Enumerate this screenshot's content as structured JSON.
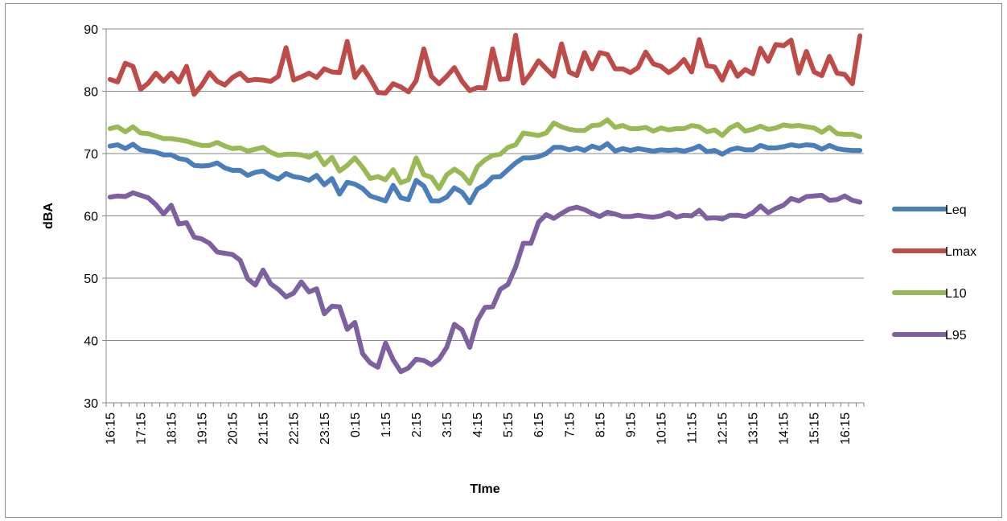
{
  "chart_data": {
    "type": "line",
    "title": "",
    "xlabel": "TIme",
    "ylabel": "dBA",
    "ylim": [
      30,
      90
    ],
    "yticks": [
      30,
      40,
      50,
      60,
      70,
      80,
      90
    ],
    "x_tick_labels": [
      "16:15",
      "17:15",
      "18:15",
      "19:15",
      "20:15",
      "21:15",
      "22:15",
      "23:15",
      "0:15",
      "1:15",
      "2:15",
      "3:15",
      "4:15",
      "5:15",
      "6:15",
      "7:15",
      "8:15",
      "9:15",
      "10:15",
      "11:15",
      "12:15",
      "13:15",
      "14:15",
      "15:15",
      "16:15"
    ],
    "x_points_per_tick": 4,
    "grid": "horizontal",
    "legend_position": "right",
    "series": [
      {
        "name": "Leq",
        "color": "#4a7ebb",
        "values": [
          71.2,
          71.4,
          70.8,
          71.5,
          70.6,
          70.4,
          70.2,
          69.8,
          69.8,
          69.2,
          69.0,
          68.1,
          68.0,
          68.1,
          68.5,
          67.7,
          67.3,
          67.3,
          66.5,
          67.0,
          67.2,
          66.4,
          65.9,
          66.8,
          66.3,
          66.1,
          65.7,
          66.5,
          65.0,
          66.0,
          63.5,
          65.4,
          65.1,
          64.4,
          63.2,
          62.8,
          62.4,
          64.9,
          62.9,
          62.6,
          65.7,
          64.8,
          62.4,
          62.4,
          63.0,
          64.5,
          63.8,
          62.1,
          64.3,
          65.0,
          66.2,
          66.3,
          67.4,
          68.5,
          69.3,
          69.3,
          69.5,
          70.0,
          71.0,
          71.0,
          70.6,
          70.9,
          70.5,
          71.2,
          70.8,
          71.6,
          70.4,
          70.8,
          70.5,
          70.8,
          70.6,
          70.4,
          70.6,
          70.5,
          70.6,
          70.4,
          70.7,
          71.2,
          70.3,
          70.5,
          69.9,
          70.6,
          70.9,
          70.6,
          70.6,
          71.3,
          70.9,
          70.9,
          71.1,
          71.4,
          71.2,
          71.4,
          71.3,
          70.7,
          71.3,
          70.8,
          70.6,
          70.5,
          70.5
        ]
      },
      {
        "name": "Lmax",
        "color": "#be4b48",
        "values": [
          81.9,
          81.5,
          84.5,
          84.0,
          80.3,
          81.3,
          82.9,
          81.6,
          82.9,
          81.5,
          84.0,
          79.5,
          81.0,
          83.0,
          81.6,
          81.0,
          82.2,
          82.9,
          81.7,
          81.9,
          81.8,
          81.6,
          82.4,
          87.0,
          81.8,
          82.3,
          82.9,
          82.2,
          83.6,
          83.1,
          83.0,
          88.0,
          82.2,
          83.9,
          82.0,
          79.8,
          79.7,
          81.2,
          80.7,
          79.9,
          81.7,
          86.8,
          82.4,
          81.2,
          82.4,
          83.8,
          81.6,
          80.1,
          80.6,
          80.5,
          86.8,
          81.9,
          82.0,
          89.0,
          81.3,
          82.9,
          84.9,
          83.6,
          82.4,
          87.6,
          83.1,
          82.5,
          86.2,
          83.6,
          86.2,
          85.9,
          83.6,
          83.6,
          83.0,
          83.8,
          86.3,
          84.4,
          84.0,
          83.0,
          83.8,
          85.1,
          83.1,
          88.3,
          84.1,
          83.9,
          81.8,
          84.7,
          82.4,
          83.5,
          82.8,
          86.9,
          84.8,
          87.5,
          87.3,
          88.2,
          82.9,
          86.4,
          83.1,
          82.5,
          85.6,
          82.9,
          82.7,
          81.2,
          88.9
        ]
      },
      {
        "name": "L10",
        "color": "#98b954",
        "values": [
          74.0,
          74.3,
          73.5,
          74.3,
          73.3,
          73.2,
          72.8,
          72.4,
          72.4,
          72.2,
          72.0,
          71.6,
          71.3,
          71.3,
          71.8,
          71.2,
          70.8,
          70.9,
          70.4,
          70.7,
          71.0,
          70.2,
          69.7,
          69.9,
          69.9,
          69.8,
          69.4,
          70.1,
          68.2,
          69.4,
          67.2,
          68.1,
          69.3,
          67.8,
          66.0,
          66.3,
          65.8,
          67.4,
          65.3,
          65.8,
          69.3,
          66.6,
          66.2,
          64.4,
          66.6,
          67.5,
          66.7,
          65.2,
          67.9,
          69.0,
          69.7,
          69.9,
          71.0,
          71.4,
          73.3,
          73.1,
          72.9,
          73.3,
          74.9,
          74.3,
          73.9,
          73.7,
          73.7,
          74.5,
          74.6,
          75.4,
          74.2,
          74.5,
          74.0,
          74.0,
          74.2,
          73.6,
          74.1,
          73.8,
          74.0,
          74.0,
          74.5,
          74.3,
          73.5,
          73.8,
          72.9,
          74.1,
          74.7,
          73.6,
          73.9,
          74.4,
          73.9,
          74.1,
          74.6,
          74.4,
          74.5,
          74.3,
          74.1,
          73.4,
          74.2,
          73.2,
          73.1,
          73.1,
          72.7
        ]
      },
      {
        "name": "L95",
        "color": "#7d60a0",
        "values": [
          63.0,
          63.2,
          63.1,
          63.7,
          63.3,
          62.9,
          61.8,
          60.3,
          61.7,
          58.7,
          58.9,
          56.6,
          56.3,
          55.6,
          54.2,
          54.0,
          53.8,
          52.9,
          49.9,
          48.9,
          51.3,
          49.1,
          48.2,
          47.0,
          47.6,
          49.4,
          47.8,
          48.3,
          44.3,
          45.5,
          45.4,
          41.8,
          42.9,
          37.9,
          36.4,
          35.7,
          39.6,
          36.9,
          35.0,
          35.6,
          37.0,
          36.8,
          36.1,
          37.0,
          38.9,
          42.6,
          41.7,
          38.9,
          43.2,
          45.3,
          45.4,
          48.2,
          49.0,
          51.8,
          55.6,
          55.6,
          59.0,
          60.2,
          59.6,
          60.4,
          61.1,
          61.4,
          61.0,
          60.4,
          59.9,
          60.6,
          60.3,
          59.9,
          59.9,
          60.1,
          59.9,
          59.8,
          60.0,
          60.5,
          59.8,
          60.1,
          60.0,
          60.9,
          59.6,
          59.7,
          59.5,
          60.1,
          60.1,
          59.9,
          60.5,
          61.6,
          60.5,
          61.2,
          61.7,
          62.8,
          62.4,
          63.1,
          63.2,
          63.3,
          62.5,
          62.6,
          63.2,
          62.5,
          62.2
        ]
      }
    ]
  }
}
